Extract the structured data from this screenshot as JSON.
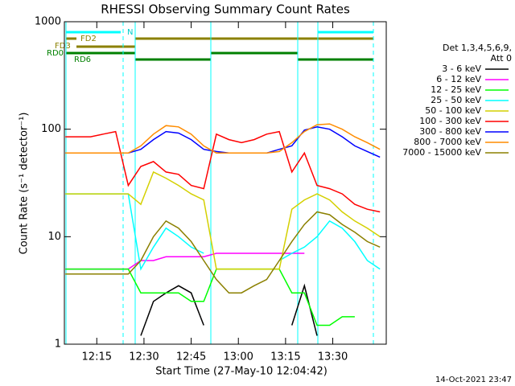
{
  "chart_data": {
    "type": "line",
    "title": "RHESSI Observing Summary Count Rates",
    "x_label": "Start Time (27-May-10 12:04:42)",
    "y_label": "Count Rate (s⁻¹ detector⁻¹)",
    "detectors": "Det 1,3,4,5,6,9,",
    "attenuator": "Att 0",
    "timestamp": "14-Oct-2021 23:47",
    "flags": [
      "N",
      "FD2",
      "FD3",
      "RD0",
      "RD6"
    ],
    "log_y": true,
    "x": [
      725,
      729,
      733,
      737,
      741,
      745,
      749,
      753,
      757,
      761,
      765,
      769,
      773,
      777,
      781,
      785,
      789,
      793,
      797,
      801,
      805,
      809,
      813,
      817,
      821,
      825
    ],
    "xlim": [
      724.7,
      827
    ],
    "xticks": [
      {
        "value": 735,
        "label": "12:15"
      },
      {
        "value": 750,
        "label": "12:30"
      },
      {
        "value": 765,
        "label": "12:45"
      },
      {
        "value": 780,
        "label": "13:00"
      },
      {
        "value": 795,
        "label": "13:15"
      },
      {
        "value": 810,
        "label": "13:30"
      }
    ],
    "ylim": [
      1,
      1000
    ],
    "yticks": [
      1,
      10,
      100,
      1000
    ],
    "series": [
      {
        "name": "3 - 6 keV",
        "color": "#000000",
        "values": [
          null,
          null,
          null,
          null,
          null,
          null,
          1.2,
          2.5,
          3,
          3.5,
          3,
          1.5,
          null,
          null,
          null,
          null,
          null,
          null,
          1.5,
          3.5,
          1.2,
          null,
          null,
          null,
          null,
          null
        ]
      },
      {
        "name": "6 - 12 keV",
        "color": "#ff00ff",
        "values": [
          5,
          5,
          5,
          5,
          5,
          5,
          6,
          6,
          6.5,
          6.5,
          6.5,
          6.5,
          7,
          7,
          7,
          7,
          7,
          7,
          7,
          7,
          null,
          null,
          null,
          null,
          null,
          null
        ]
      },
      {
        "name": "12 - 25 keV",
        "color": "#00ff00",
        "values": [
          5,
          5,
          5,
          5,
          5,
          5,
          3,
          3,
          3,
          3,
          2.5,
          2.5,
          5,
          5,
          5,
          5,
          5,
          5,
          3,
          3,
          1.5,
          1.5,
          1.8,
          1.8,
          null,
          null
        ]
      },
      {
        "name": "25 - 50 keV",
        "color": "#00ffff",
        "values": [
          25,
          25,
          25,
          25,
          25,
          25,
          5,
          8,
          12,
          10,
          8,
          7,
          null,
          null,
          null,
          null,
          null,
          6,
          7,
          8,
          10,
          14,
          12,
          9,
          6,
          5
        ]
      },
      {
        "name": "50 - 100 keV",
        "color": "#d4d000",
        "values": [
          25,
          25,
          25,
          25,
          25,
          25,
          20,
          40,
          35,
          30,
          25,
          22,
          5,
          5,
          5,
          5,
          5,
          5,
          18,
          22,
          25,
          22,
          17,
          14,
          12,
          10
        ]
      },
      {
        "name": "100 - 300 keV",
        "color": "#ff0000",
        "values": [
          85,
          85,
          85,
          90,
          95,
          30,
          45,
          50,
          40,
          38,
          30,
          28,
          90,
          80,
          75,
          80,
          90,
          95,
          40,
          60,
          30,
          28,
          25,
          20,
          18,
          17
        ]
      },
      {
        "name": "300 - 800 keV",
        "color": "#0000ff",
        "values": [
          60,
          60,
          60,
          60,
          60,
          60,
          65,
          80,
          95,
          92,
          80,
          65,
          62,
          60,
          60,
          60,
          60,
          65,
          70,
          98,
          105,
          100,
          85,
          70,
          62,
          55
        ]
      },
      {
        "name": "800 - 7000 keV",
        "color": "#ff8c00",
        "values": [
          60,
          60,
          60,
          60,
          60,
          60,
          70,
          90,
          108,
          105,
          90,
          70,
          60,
          60,
          60,
          60,
          60,
          62,
          75,
          95,
          110,
          112,
          100,
          85,
          75,
          65
        ]
      },
      {
        "name": "7000 - 15000 keV",
        "color": "#8b8000",
        "values": [
          4.5,
          4.5,
          4.5,
          4.5,
          4.5,
          4.5,
          6,
          10,
          14,
          12,
          9,
          6,
          4,
          3,
          3,
          3.5,
          4,
          6,
          9,
          13,
          17,
          16,
          13,
          11,
          9,
          8
        ]
      }
    ]
  }
}
